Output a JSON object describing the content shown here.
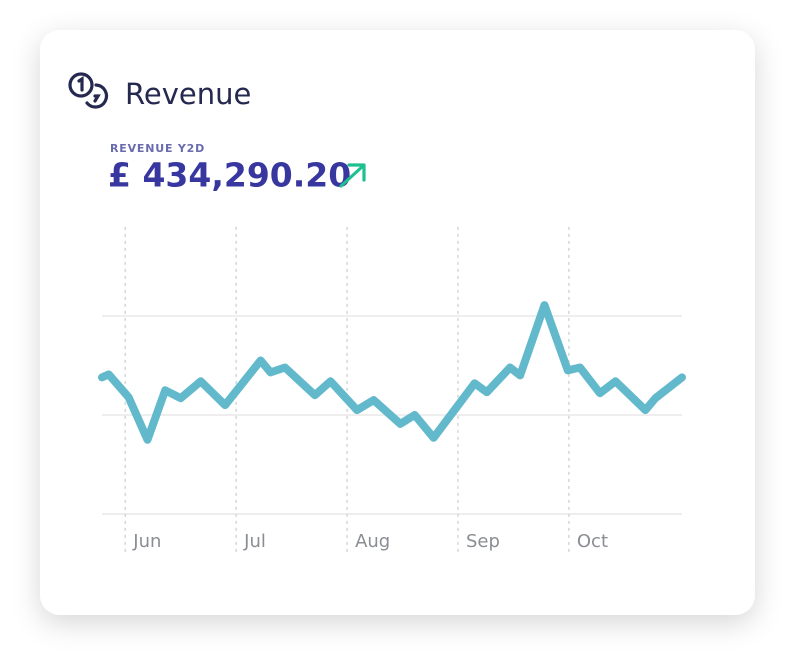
{
  "chart_data": {
    "type": "line",
    "title": "Revenue",
    "subtitle": "REVENUE Y2D",
    "headline": "£ 434,290.20",
    "x": [
      -0.21,
      -0.15,
      0.03,
      0.2,
      0.36,
      0.5,
      0.68,
      0.9,
      1.22,
      1.31,
      1.44,
      1.71,
      1.85,
      2.09,
      2.24,
      2.48,
      2.61,
      2.78,
      3.15,
      3.26,
      3.47,
      3.56,
      3.78,
      3.99,
      4.1,
      4.28,
      4.42,
      4.69,
      4.78,
      5.02
    ],
    "series": [
      {
        "color": "#62b9cb",
        "values": [
          1.38,
          1.41,
          1.18,
          0.75,
          1.25,
          1.17,
          1.34,
          1.1,
          1.55,
          1.43,
          1.48,
          1.2,
          1.34,
          1.05,
          1.15,
          0.91,
          1.0,
          0.77,
          1.32,
          1.23,
          1.48,
          1.4,
          2.11,
          1.45,
          1.48,
          1.22,
          1.34,
          1.05,
          1.17,
          1.38
        ]
      }
    ],
    "xlim": [
      -0.21,
      5.02
    ],
    "xticks": [
      {
        "value": 0,
        "label": "Jun"
      },
      {
        "value": 1,
        "label": "Jul"
      },
      {
        "value": 2,
        "label": "Aug"
      },
      {
        "value": 3,
        "label": "Sep"
      },
      {
        "value": 4,
        "label": "Oct"
      }
    ],
    "ylim": [
      0,
      2.9
    ],
    "yticks": [
      0,
      1,
      2
    ],
    "grid": true
  }
}
